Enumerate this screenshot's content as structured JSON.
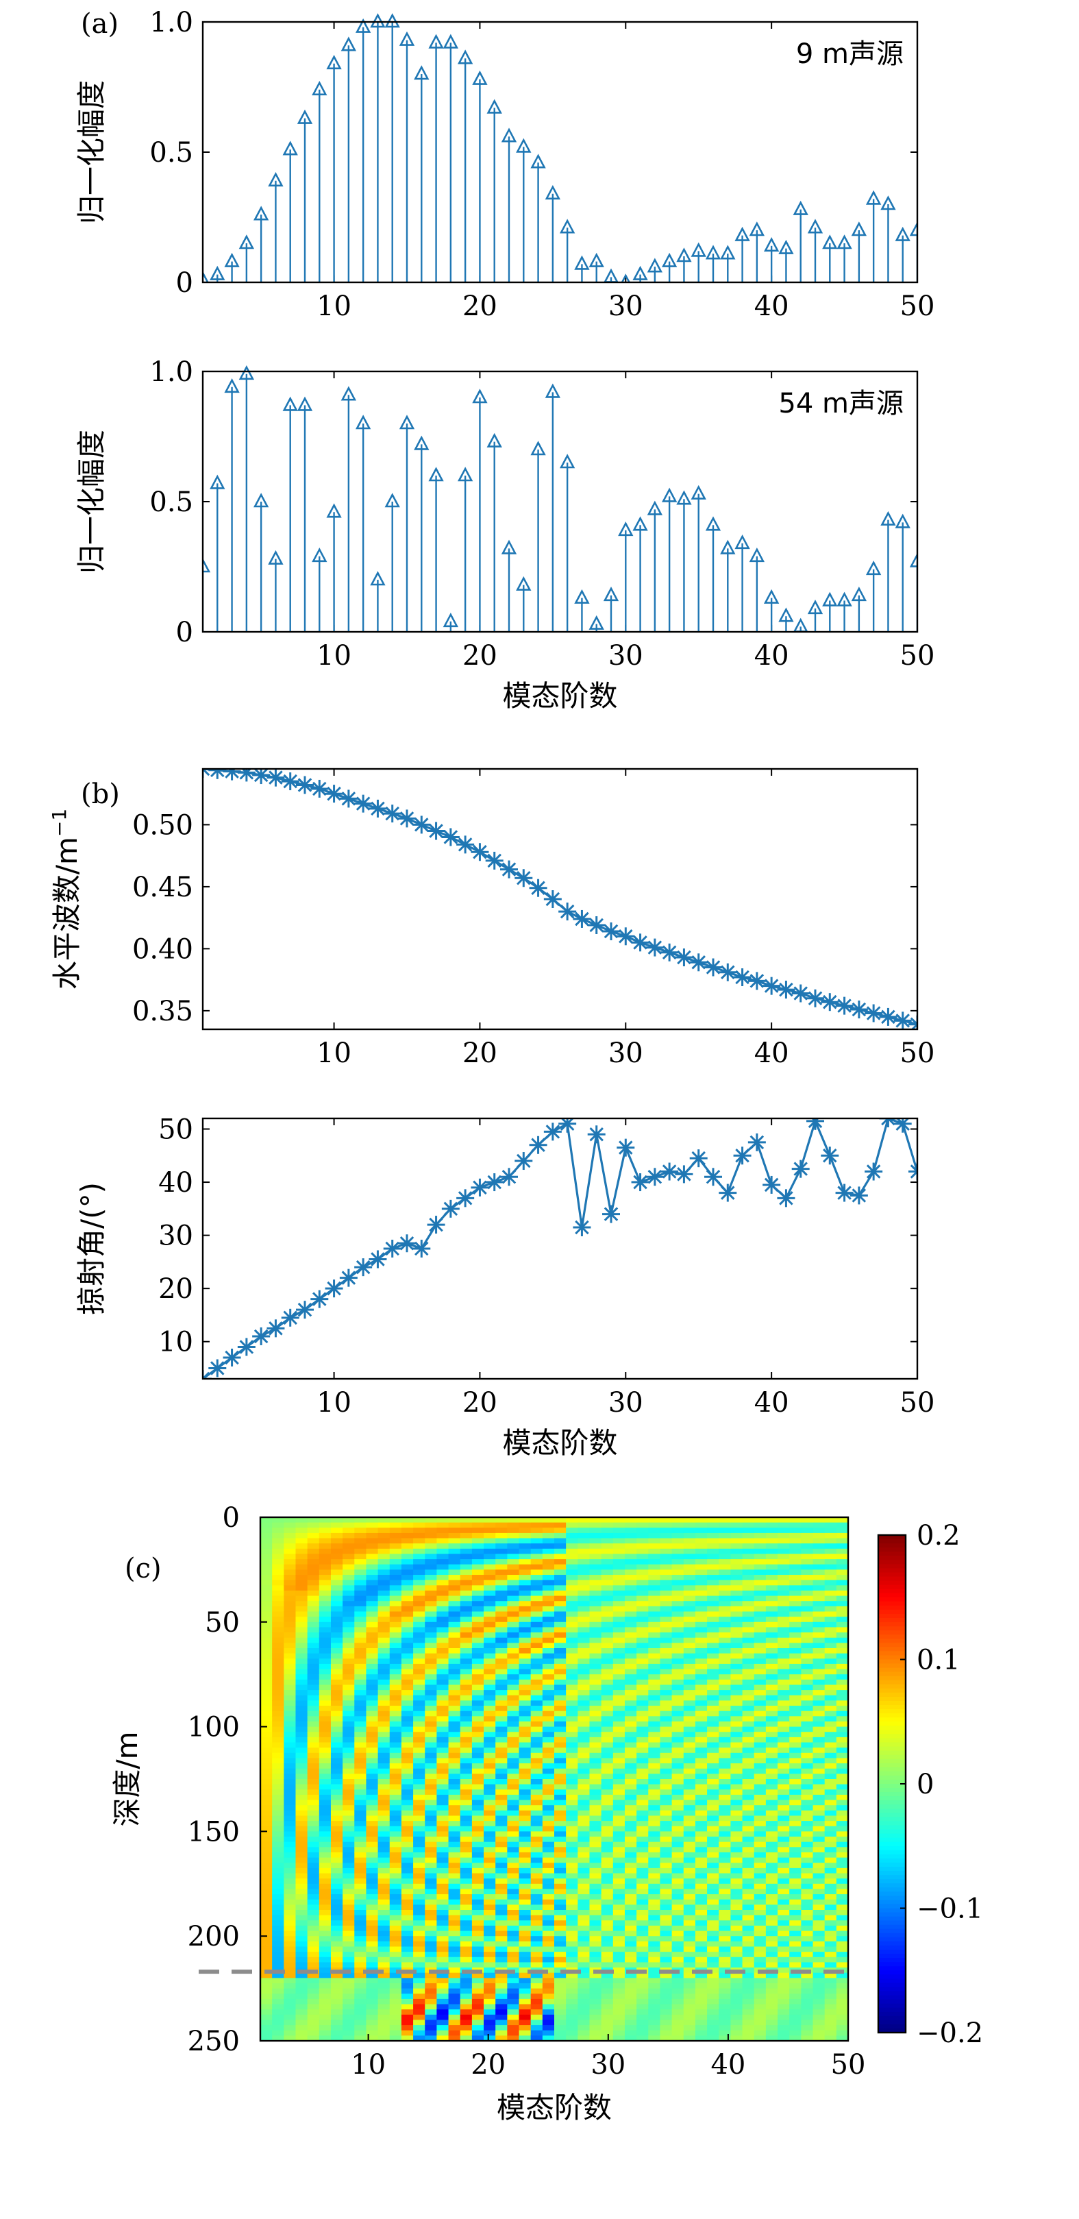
{
  "labels": {
    "panel_a": "(a)",
    "panel_b": "(b)",
    "panel_c": "(c)"
  },
  "colors": {
    "series": "#1f77b4",
    "dashed_line": "#8c8c8c"
  },
  "chart_data": [
    {
      "id": "a1",
      "type": "stem",
      "annotation": "9 m声源",
      "ylabel": "归一化幅度",
      "xlabel": "",
      "xlim": [
        1,
        50
      ],
      "ylim": [
        0,
        1
      ],
      "xticks": [
        10,
        20,
        30,
        40,
        50
      ],
      "yticks": [
        0,
        0.5,
        1.0
      ],
      "ytick_labels": [
        "0",
        "0.5",
        "1.0"
      ],
      "x": [
        1,
        2,
        3,
        4,
        5,
        6,
        7,
        8,
        9,
        10,
        11,
        12,
        13,
        14,
        15,
        16,
        17,
        18,
        19,
        20,
        21,
        22,
        23,
        24,
        25,
        26,
        27,
        28,
        29,
        30,
        31,
        32,
        33,
        34,
        35,
        36,
        37,
        38,
        39,
        40,
        41,
        42,
        43,
        44,
        45,
        46,
        47,
        48,
        49,
        50
      ],
      "values": [
        0.01,
        0.03,
        0.08,
        0.15,
        0.26,
        0.39,
        0.51,
        0.63,
        0.74,
        0.84,
        0.91,
        0.98,
        1.0,
        1.0,
        0.93,
        0.8,
        0.92,
        0.92,
        0.86,
        0.78,
        0.67,
        0.56,
        0.52,
        0.46,
        0.34,
        0.21,
        0.07,
        0.08,
        0.02,
        0.0,
        0.03,
        0.06,
        0.08,
        0.1,
        0.12,
        0.11,
        0.11,
        0.18,
        0.2,
        0.14,
        0.13,
        0.28,
        0.21,
        0.15,
        0.15,
        0.2,
        0.32,
        0.3,
        0.18,
        0.2
      ]
    },
    {
      "id": "a2",
      "type": "stem",
      "annotation": "54 m声源",
      "ylabel": "归一化幅度",
      "xlabel": "模态阶数",
      "xlim": [
        1,
        50
      ],
      "ylim": [
        0,
        1
      ],
      "xticks": [
        10,
        20,
        30,
        40,
        50
      ],
      "yticks": [
        0,
        0.5,
        1.0
      ],
      "ytick_labels": [
        "0",
        "0.5",
        "1.0"
      ],
      "x": [
        1,
        2,
        3,
        4,
        5,
        6,
        7,
        8,
        9,
        10,
        11,
        12,
        13,
        14,
        15,
        16,
        17,
        18,
        19,
        20,
        21,
        22,
        23,
        24,
        25,
        26,
        27,
        28,
        29,
        30,
        31,
        32,
        33,
        34,
        35,
        36,
        37,
        38,
        39,
        40,
        41,
        42,
        43,
        44,
        45,
        46,
        47,
        48,
        49,
        50
      ],
      "values": [
        0.25,
        0.57,
        0.94,
        0.99,
        0.5,
        0.28,
        0.87,
        0.87,
        0.29,
        0.46,
        0.91,
        0.8,
        0.2,
        0.5,
        0.8,
        0.72,
        0.6,
        0.04,
        0.6,
        0.9,
        0.73,
        0.32,
        0.18,
        0.7,
        0.92,
        0.65,
        0.13,
        0.03,
        0.14,
        0.39,
        0.41,
        0.47,
        0.52,
        0.51,
        0.53,
        0.41,
        0.32,
        0.34,
        0.29,
        0.13,
        0.06,
        0.02,
        0.09,
        0.12,
        0.12,
        0.14,
        0.24,
        0.43,
        0.42,
        0.27
      ]
    },
    {
      "id": "b1",
      "type": "line",
      "ylabel": "水平波数/m",
      "ylabel_sup": "−1",
      "xlabel": "",
      "xlim": [
        1,
        50
      ],
      "ylim": [
        0.335,
        0.545
      ],
      "xticks": [
        10,
        20,
        30,
        40,
        50
      ],
      "yticks": [
        0.35,
        0.4,
        0.45,
        0.5
      ],
      "ytick_labels": [
        "0.35",
        "0.40",
        "0.45",
        "0.50"
      ],
      "x": [
        1,
        2,
        3,
        4,
        5,
        6,
        7,
        8,
        9,
        10,
        11,
        12,
        13,
        14,
        15,
        16,
        17,
        18,
        19,
        20,
        21,
        22,
        23,
        24,
        25,
        26,
        27,
        28,
        29,
        30,
        31,
        32,
        33,
        34,
        35,
        36,
        37,
        38,
        39,
        40,
        41,
        42,
        43,
        44,
        45,
        46,
        47,
        48,
        49,
        50
      ],
      "values": [
        0.545,
        0.544,
        0.543,
        0.542,
        0.54,
        0.538,
        0.535,
        0.532,
        0.529,
        0.525,
        0.521,
        0.517,
        0.513,
        0.509,
        0.505,
        0.5,
        0.495,
        0.49,
        0.484,
        0.478,
        0.471,
        0.464,
        0.457,
        0.449,
        0.44,
        0.43,
        0.424,
        0.419,
        0.414,
        0.41,
        0.405,
        0.401,
        0.397,
        0.393,
        0.389,
        0.385,
        0.381,
        0.377,
        0.374,
        0.37,
        0.367,
        0.364,
        0.36,
        0.357,
        0.354,
        0.351,
        0.348,
        0.345,
        0.342,
        0.339
      ]
    },
    {
      "id": "b2",
      "type": "line",
      "ylabel": "掠射角/(°)",
      "xlabel": "模态阶数",
      "xlim": [
        1,
        50
      ],
      "ylim": [
        3,
        52
      ],
      "xticks": [
        10,
        20,
        30,
        40,
        50
      ],
      "yticks": [
        10,
        20,
        30,
        40,
        50
      ],
      "ytick_labels": [
        "10",
        "20",
        "30",
        "40",
        "50"
      ],
      "x": [
        1,
        2,
        3,
        4,
        5,
        6,
        7,
        8,
        9,
        10,
        11,
        12,
        13,
        14,
        15,
        16,
        17,
        18,
        19,
        20,
        21,
        22,
        23,
        24,
        25,
        26,
        27,
        28,
        29,
        30,
        31,
        32,
        33,
        34,
        35,
        36,
        37,
        38,
        39,
        40,
        41,
        42,
        43,
        44,
        45,
        46,
        47,
        48,
        49,
        50
      ],
      "values": [
        3,
        5,
        7,
        9,
        11,
        12.5,
        14.5,
        16,
        18,
        20,
        22,
        24,
        25.5,
        27.5,
        28.5,
        27.5,
        32,
        35,
        37,
        39,
        40,
        41,
        44,
        47,
        49.5,
        51,
        31.5,
        49,
        34,
        46.5,
        40,
        41,
        42,
        41.5,
        44.5,
        41,
        38,
        45,
        47.5,
        39.5,
        37,
        42.5,
        51.5,
        45,
        38,
        37.5,
        42,
        52,
        51,
        42
      ]
    },
    {
      "id": "c",
      "type": "heatmap",
      "ylabel": "深度/m",
      "xlabel": "模态阶数",
      "xlim": [
        1,
        50
      ],
      "ylim": [
        0,
        250
      ],
      "xticks": [
        10,
        20,
        30,
        40,
        50
      ],
      "yticks": [
        0,
        50,
        100,
        150,
        200,
        250
      ],
      "dashed_line_depth": 217,
      "colorbar": {
        "min": -0.2,
        "max": 0.2,
        "ticks": [
          0.2,
          0.1,
          0,
          -0.1,
          -0.2
        ],
        "tick_labels": [
          "0.2",
          "0.1",
          "0",
          "−0.1",
          "−0.2"
        ]
      }
    }
  ]
}
